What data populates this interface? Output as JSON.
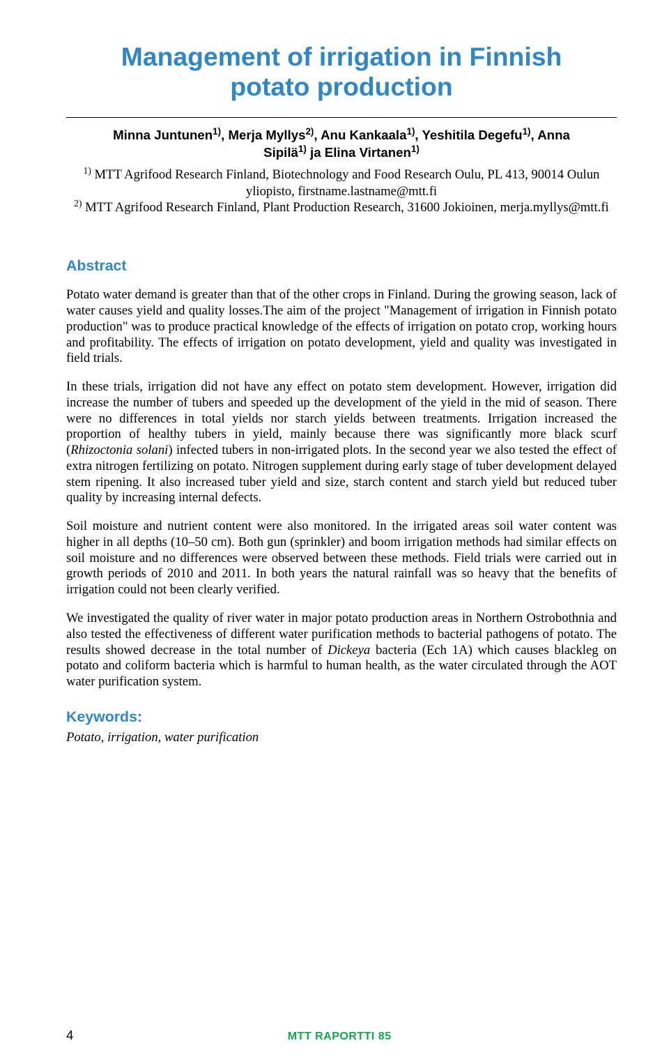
{
  "colors": {
    "title": "#2f88c5",
    "heading": "#2f88c5",
    "footer": "#15a650",
    "body_text": "#000000",
    "background": "#ffffff",
    "rule": "#000000"
  },
  "typography": {
    "title_family": "Arial",
    "title_size_pt": 28,
    "authors_family": "Arial",
    "authors_size_pt": 14,
    "affil_family": "Times New Roman",
    "affil_size_pt": 14,
    "heading_family": "Arial",
    "heading_size_pt": 16,
    "body_family": "Times New Roman",
    "body_size_pt": 14,
    "footer_size_pt": 12,
    "pagenum_size_pt": 14
  },
  "title_lines": [
    "Management of irrigation in Finnish",
    "potato production"
  ],
  "authors_html": "Minna Juntunen<sup>1)</sup>, Merja Myllys<sup>2)</sup>, Anu Kankaala<sup>1)</sup>, Yeshitila Degefu<sup>1)</sup>, Anna Sipilä<sup>1)</sup> ja Elina Virtanen<sup>1)</sup>",
  "affiliations_html": "<sup>1)</sup> MTT Agrifood Research Finland, Biotechnology and Food Research Oulu, PL 413, 90014 Oulun yliopisto, firstname.lastname@mtt.fi<br><sup>2)</sup> MTT Agrifood Research Finland, Plant Production Research, 31600 Jokioinen, merja.myllys@mtt.fi",
  "abstract_heading": "Abstract",
  "paragraphs": [
    "Potato water demand is greater than that of the other crops in Finland. During the growing season, lack of water causes yield and quality losses.The aim of the project \"Management of irrigation in Finnish potato production\" was to produce practical knowledge of the effects of irrigation on potato crop, working hours and profitability. The effects of irrigation on potato development, yield and quality was investigated in field trials.",
    "In these trials, irrigation did not have any effect on potato stem development. However, irrigation did increase the number of tubers and speeded up the development of the yield in the mid of season. There were no differences in total yields nor starch yields between treatments. Irrigation increased the proportion of healthy tubers in yield, mainly because there was significantly more black scurf (<em>Rhizoctonia solani</em>) infected tubers in non-irrigated plots. In the second year we also tested the effect of extra nitrogen fertilizing on potato. Nitrogen supplement during early stage of tuber development delayed stem ripening. It also increased tuber yield and size, starch content and starch yield but reduced tuber quality by increasing internal defects.",
    "Soil moisture and nutrient content were also monitored. In the irrigated areas soil water content was higher in all depths (10–50 cm). Both gun (sprinkler) and boom irrigation methods had similar effects on soil moisture and no differences were observed between these methods. Field trials were carried out in growth periods of 2010 and 2011. In both years the natural rainfall was so heavy that the benefits of irrigation could not been clearly verified.",
    "We investigated the quality of river water in major potato production areas in Northern Ostrobothnia and also tested the effectiveness of different water purification methods to bacterial pathogens of potato. The results showed decrease in the total number of <em>Dickeya</em> bacteria (Ech 1A) which causes blackleg on potato and coliform bacteria which is harmful to human health, as the water circulated through the AOT water purification system."
  ],
  "keywords_heading": "Keywords:",
  "keywords_text": "Potato, irrigation, water purification",
  "footer": {
    "page_number": "4",
    "center_text": "MTT RAPORTTI 85"
  }
}
